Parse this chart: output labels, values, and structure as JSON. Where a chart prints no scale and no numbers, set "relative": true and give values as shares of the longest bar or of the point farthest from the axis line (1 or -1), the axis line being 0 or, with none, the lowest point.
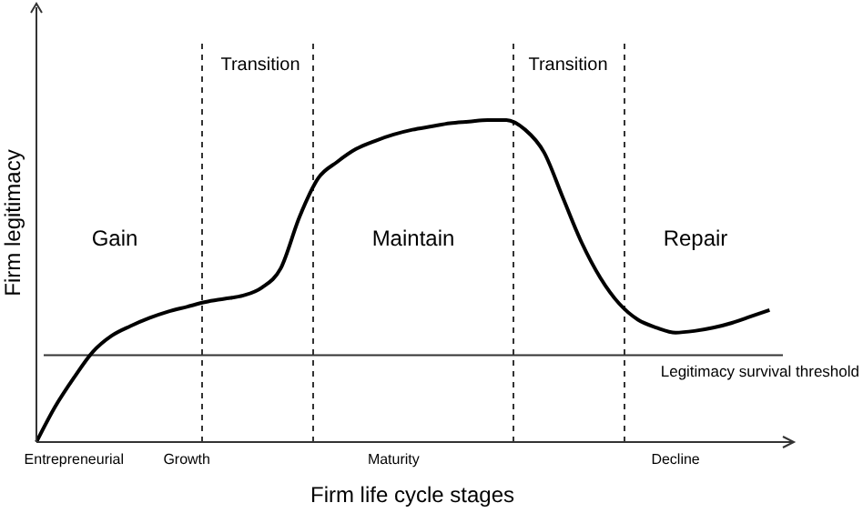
{
  "chart_data": {
    "type": "line",
    "relative": true,
    "xlabel": "Firm life cycle stages",
    "ylabel": "Firm legitimacy",
    "categories": [
      null,
      null,
      "Entrepreneurial",
      null,
      null,
      null,
      null,
      null,
      "Growth",
      null,
      null,
      null,
      null,
      null,
      null,
      null,
      null,
      null,
      null,
      "Maturity",
      null,
      null,
      null,
      null,
      null,
      null,
      null,
      null,
      null,
      null,
      null,
      null,
      null,
      null,
      "Decline",
      null,
      null,
      null,
      null,
      null
    ],
    "series": [
      {
        "color": "#000000",
        "values": [
          0,
          0.11,
          0.2,
          0.28,
          0.33,
          0.36,
          0.385,
          0.405,
          0.42,
          0.435,
          0.445,
          0.455,
          0.48,
          0.54,
          0.7,
          0.82,
          0.87,
          0.91,
          0.935,
          0.955,
          0.97,
          0.98,
          0.99,
          0.995,
          1,
          1,
          0.97,
          0.9,
          0.76,
          0.62,
          0.51,
          0.43,
          0.38,
          0.355,
          0.34,
          0.345,
          0.355,
          0.37,
          0.39,
          0.41
        ]
      }
    ],
    "ref_lines": [
      {
        "axis": "y",
        "value": 0.27,
        "label": "Legitimacy survival threshold",
        "line_style": "solid",
        "color": "#333333"
      }
    ],
    "annotations": [
      "Gain",
      "Transition",
      "Maintain",
      "Transition",
      "Repair"
    ],
    "grid": false,
    "marker": "none",
    "line_style": "solid"
  }
}
